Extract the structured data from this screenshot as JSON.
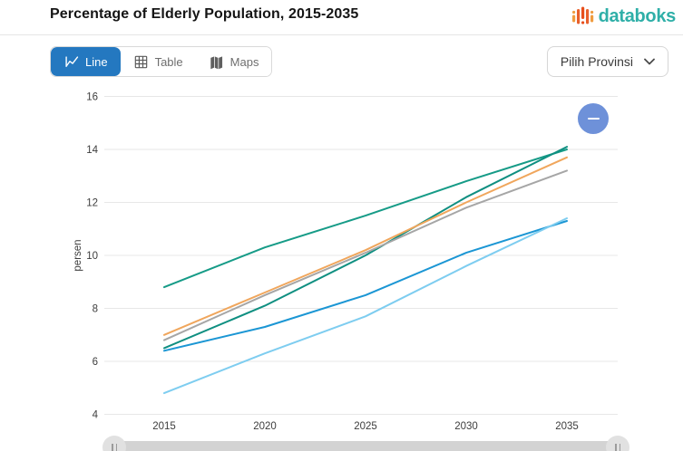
{
  "header": {
    "title": "Percentage of Elderly Population, 2015-2035",
    "brand": "databoks"
  },
  "toolbar": {
    "tabs": [
      {
        "label": "Line",
        "active": true
      },
      {
        "label": "Table",
        "active": false
      },
      {
        "label": "Maps",
        "active": false
      }
    ],
    "province_dropdown": {
      "label": "Pilih Provinsi"
    }
  },
  "colors": {
    "active_tab": "#2478c0",
    "brand_teal": "#2fafa8",
    "annotation_button": "#6e91d9",
    "gridline": "#e7e7e7"
  },
  "annotation_button": {
    "icon": "minus"
  },
  "chart_data": {
    "type": "line",
    "x": [
      2015,
      2020,
      2025,
      2030,
      2035
    ],
    "series": [
      {
        "name": "teal-dark",
        "color": "#169b87",
        "values": [
          8.8,
          10.3,
          11.5,
          12.8,
          14.0
        ]
      },
      {
        "name": "teal",
        "color": "#0f8f81",
        "values": [
          6.5,
          8.1,
          10.0,
          12.2,
          14.1
        ]
      },
      {
        "name": "orange",
        "color": "#f0a65c",
        "values": [
          7.0,
          8.6,
          10.2,
          12.0,
          13.7
        ]
      },
      {
        "name": "gray",
        "color": "#a6a6a6",
        "values": [
          6.8,
          8.5,
          10.1,
          11.8,
          13.2
        ]
      },
      {
        "name": "blue",
        "color": "#1b96d4",
        "values": [
          6.4,
          7.3,
          8.5,
          10.1,
          11.3
        ]
      },
      {
        "name": "light-blue",
        "color": "#7ecdf0",
        "values": [
          4.8,
          6.3,
          7.7,
          9.6,
          11.4
        ]
      }
    ],
    "title": "Percentage of Elderly Population, 2015-2035",
    "xlabel": "",
    "ylabel": "persen",
    "ylim": [
      4,
      16
    ],
    "yticks": [
      16,
      14,
      12,
      10,
      8,
      6,
      4
    ],
    "xticks": [
      2015,
      2020,
      2025,
      2030,
      2035
    ],
    "grid": true,
    "legend_position": "none"
  }
}
